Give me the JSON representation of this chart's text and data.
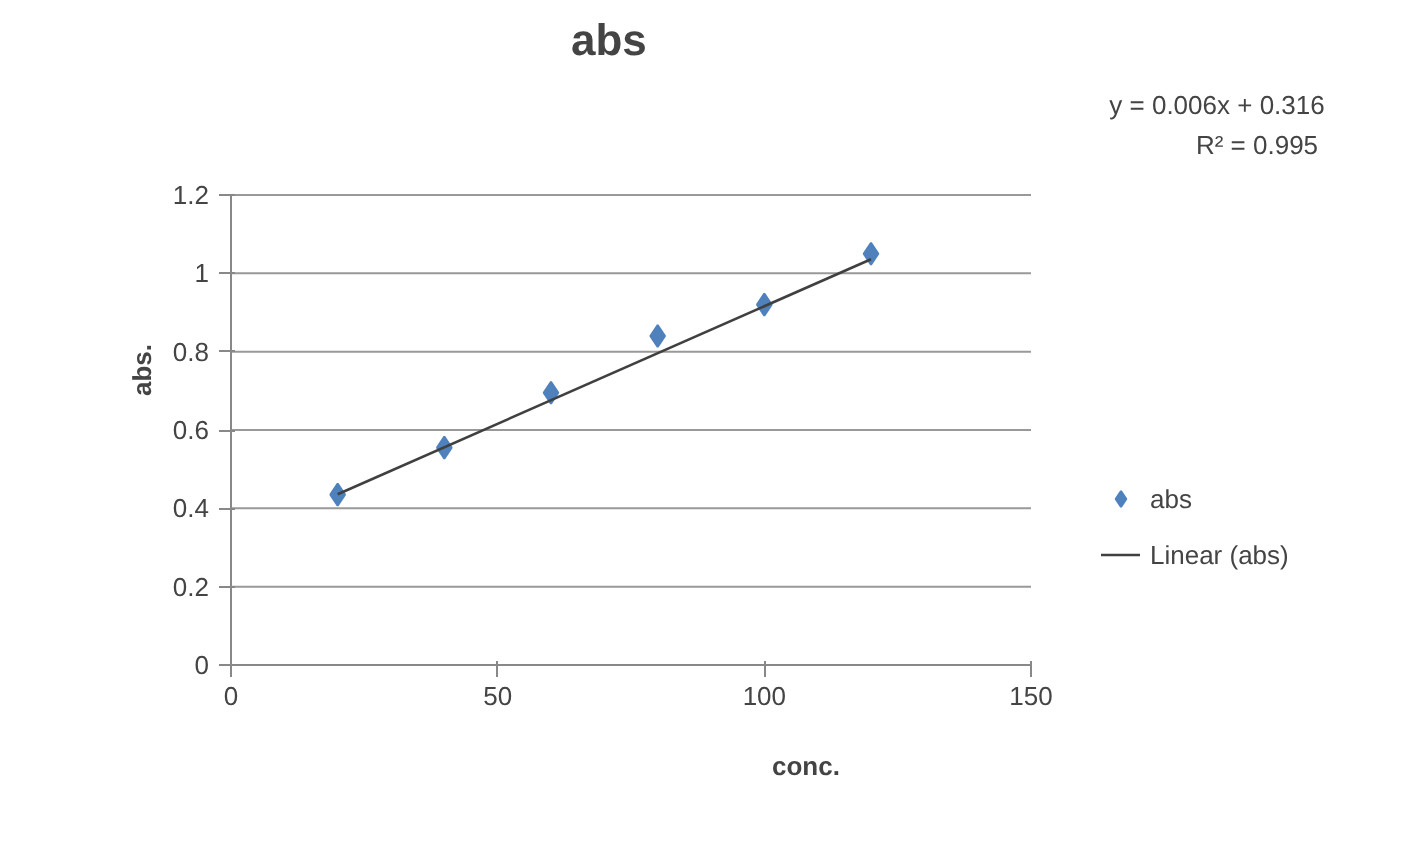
{
  "chart_data": {
    "type": "scatter",
    "title": "abs",
    "xlabel": "conc.",
    "ylabel": "abs.",
    "x": [
      20,
      40,
      60,
      80,
      100,
      120
    ],
    "series": [
      {
        "name": "abs",
        "color": "#4f81bd",
        "marker": "diamond",
        "values": [
          0.435,
          0.555,
          0.695,
          0.84,
          0.92,
          1.05
        ]
      },
      {
        "name": "Linear (abs)",
        "type": "line",
        "color": "#404040",
        "x": [
          20,
          120
        ],
        "values": [
          0.436,
          1.036
        ]
      }
    ],
    "xlim": [
      0,
      150
    ],
    "xticks": [
      0,
      50,
      100,
      150
    ],
    "ylim": [
      0,
      1.2
    ],
    "yticks": [
      0,
      0.2,
      0.4,
      0.6,
      0.8,
      1,
      1.2
    ],
    "grid": "y",
    "legend": "right",
    "annotations": [
      "y = 0.006x + 0.316",
      "R² = 0.995"
    ]
  }
}
